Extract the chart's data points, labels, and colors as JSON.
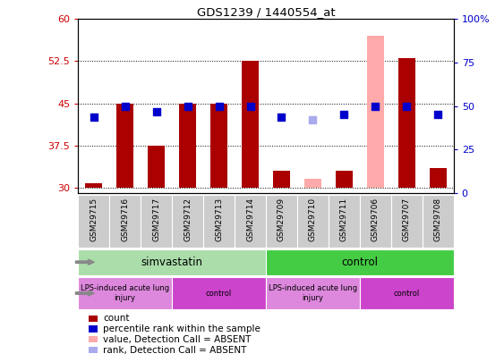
{
  "title": "GDS1239 / 1440554_at",
  "samples": [
    "GSM29715",
    "GSM29716",
    "GSM29717",
    "GSM29712",
    "GSM29713",
    "GSM29714",
    "GSM29709",
    "GSM29710",
    "GSM29711",
    "GSM29706",
    "GSM29707",
    "GSM29708"
  ],
  "bar_bottoms": [
    30,
    30,
    30,
    30,
    30,
    30,
    30,
    30,
    30,
    30,
    30,
    30
  ],
  "bar_tops": [
    30.8,
    45.0,
    37.5,
    45.0,
    45.0,
    52.5,
    33.0,
    31.5,
    33.0,
    57.0,
    53.0,
    33.5
  ],
  "bar_colors": [
    "#aa0000",
    "#aa0000",
    "#aa0000",
    "#aa0000",
    "#aa0000",
    "#aa0000",
    "#aa0000",
    "#ffaaaa",
    "#aa0000",
    "#ffaaaa",
    "#aa0000",
    "#aa0000"
  ],
  "blue_dots_y": [
    42.5,
    44.5,
    43.5,
    44.5,
    44.5,
    44.5,
    42.5,
    42.0,
    43.0,
    44.5,
    44.5,
    43.0
  ],
  "blue_dot_colors": [
    "#0000cc",
    "#0000cc",
    "#0000cc",
    "#0000cc",
    "#0000cc",
    "#0000cc",
    "#0000cc",
    "#aaaaee",
    "#0000cc",
    "#0000cc",
    "#0000cc",
    "#0000cc"
  ],
  "ylim_left": [
    29.0,
    60.0
  ],
  "ylim_right": [
    0,
    100
  ],
  "yticks_left": [
    30,
    37.5,
    45,
    52.5,
    60
  ],
  "yticks_right": [
    0,
    25,
    50,
    75,
    100
  ],
  "ytick_labels_left": [
    "30",
    "37.5",
    "45",
    "52.5",
    "60"
  ],
  "ytick_labels_right": [
    "0",
    "25",
    "50",
    "75",
    "100%"
  ],
  "left_tick_color": "#cc0000",
  "right_tick_color": "#0000cc",
  "agent_groups": [
    {
      "label": "simvastatin",
      "start": 0,
      "end": 6,
      "color": "#aaddaa"
    },
    {
      "label": "control",
      "start": 6,
      "end": 12,
      "color": "#44cc44"
    }
  ],
  "disease_groups": [
    {
      "label": "LPS-induced acute lung\ninjury",
      "start": 0,
      "end": 3,
      "color": "#dd88dd"
    },
    {
      "label": "control",
      "start": 3,
      "end": 6,
      "color": "#cc44cc"
    },
    {
      "label": "LPS-induced acute lung\ninjury",
      "start": 6,
      "end": 9,
      "color": "#dd88dd"
    },
    {
      "label": "control",
      "start": 9,
      "end": 12,
      "color": "#cc44cc"
    }
  ],
  "legend_items": [
    {
      "label": "count",
      "color": "#aa0000"
    },
    {
      "label": "percentile rank within the sample",
      "color": "#0000cc"
    },
    {
      "label": "value, Detection Call = ABSENT",
      "color": "#ffaaaa"
    },
    {
      "label": "rank, Detection Call = ABSENT",
      "color": "#aaaaee"
    }
  ],
  "bar_width": 0.55,
  "dot_size": 35,
  "background_color": "#ffffff",
  "xticklabel_bg": "#cccccc",
  "n_samples": 12
}
